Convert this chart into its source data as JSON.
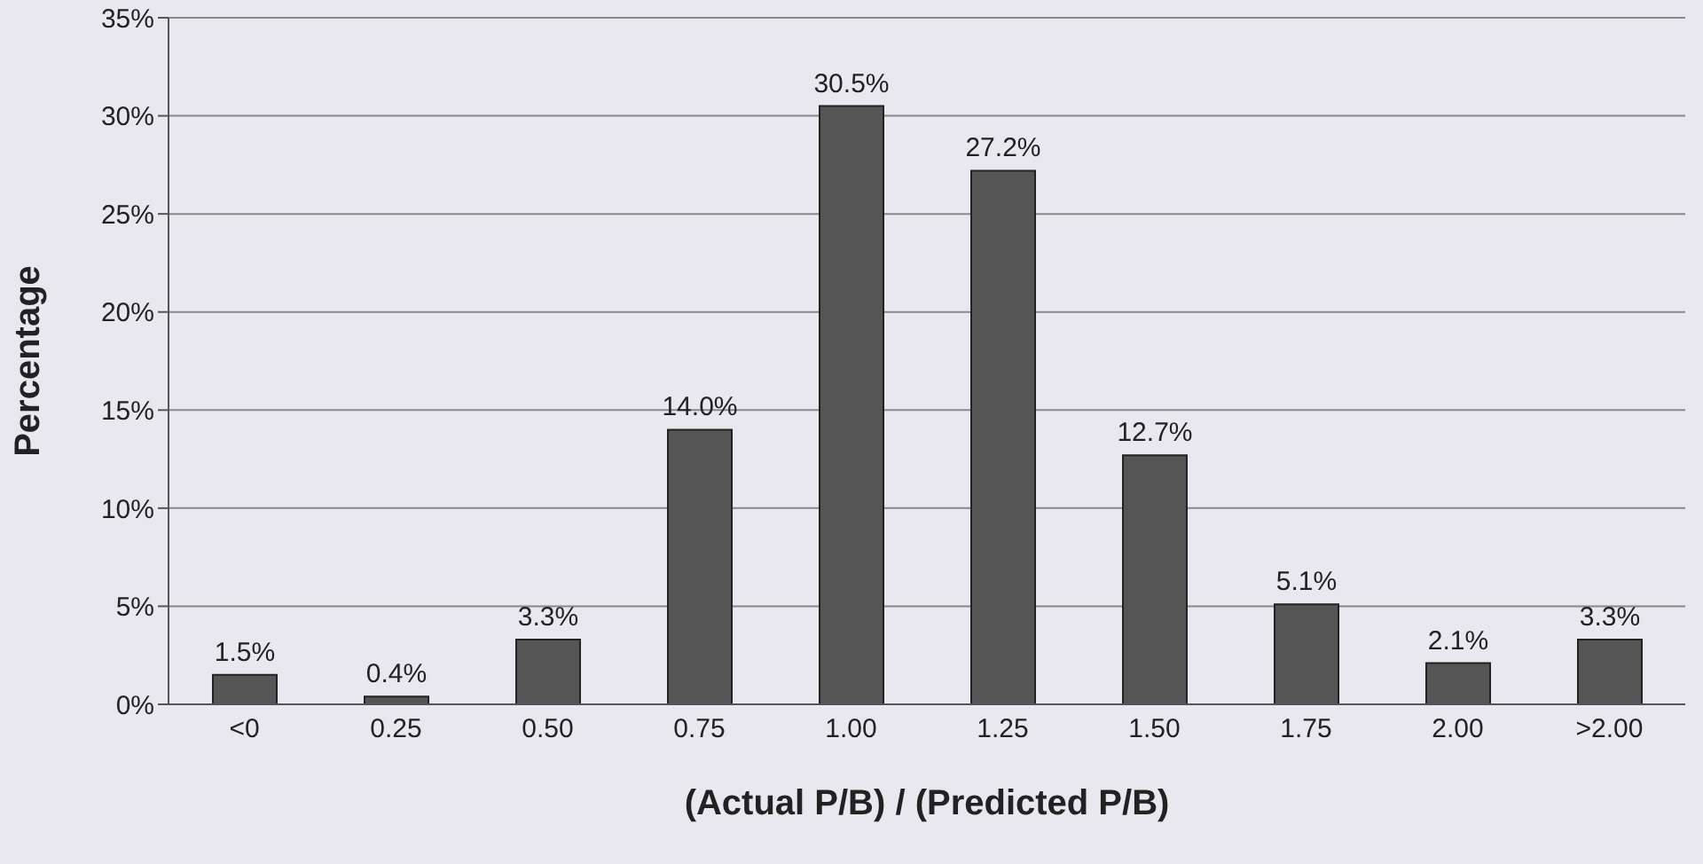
{
  "chart_data": {
    "type": "bar",
    "xlabel": "(Actual P/B) / (Predicted P/B)",
    "ylabel": "Percentage",
    "categories": [
      "<0",
      "0.25",
      "0.50",
      "0.75",
      "1.00",
      "1.25",
      "1.50",
      "1.75",
      "2.00",
      ">2.00"
    ],
    "values": [
      1.5,
      0.4,
      3.3,
      14.0,
      30.5,
      27.2,
      12.7,
      5.1,
      2.1,
      3.3
    ],
    "value_labels": [
      "1.5%",
      "0.4%",
      "3.3%",
      "14.0%",
      "30.5%",
      "27.2%",
      "12.7%",
      "5.1%",
      "2.1%",
      "3.3%"
    ],
    "color": "#555555",
    "ylim": [
      0,
      35
    ],
    "yticks": [
      {
        "value": 0,
        "label": "0%"
      },
      {
        "value": 5,
        "label": "5%"
      },
      {
        "value": 10,
        "label": "10%"
      },
      {
        "value": 15,
        "label": "15%"
      },
      {
        "value": 20,
        "label": "20%"
      },
      {
        "value": 25,
        "label": "25%"
      },
      {
        "value": 30,
        "label": "30%"
      },
      {
        "value": 35,
        "label": "35%"
      }
    ],
    "grid": "y"
  }
}
